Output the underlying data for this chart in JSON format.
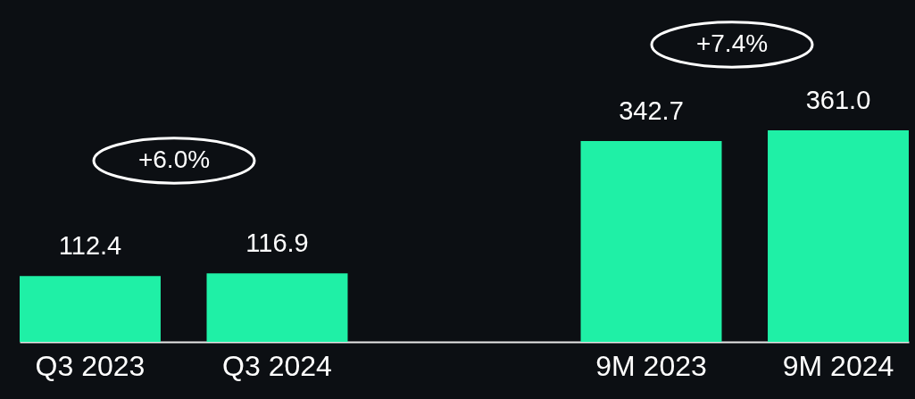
{
  "chart_data": {
    "type": "bar",
    "categories": [
      "Q3 2023",
      "Q3 2024",
      null,
      "9M 2023",
      "9M 2024"
    ],
    "values": [
      112.4,
      116.9,
      null,
      342.7,
      361.0
    ],
    "color": "#1ff0a6",
    "value_labels": [
      "112.4",
      "116.9",
      null,
      "342.7",
      "361.0"
    ],
    "annotations": [
      "+6.0%",
      "+7.4%"
    ]
  }
}
